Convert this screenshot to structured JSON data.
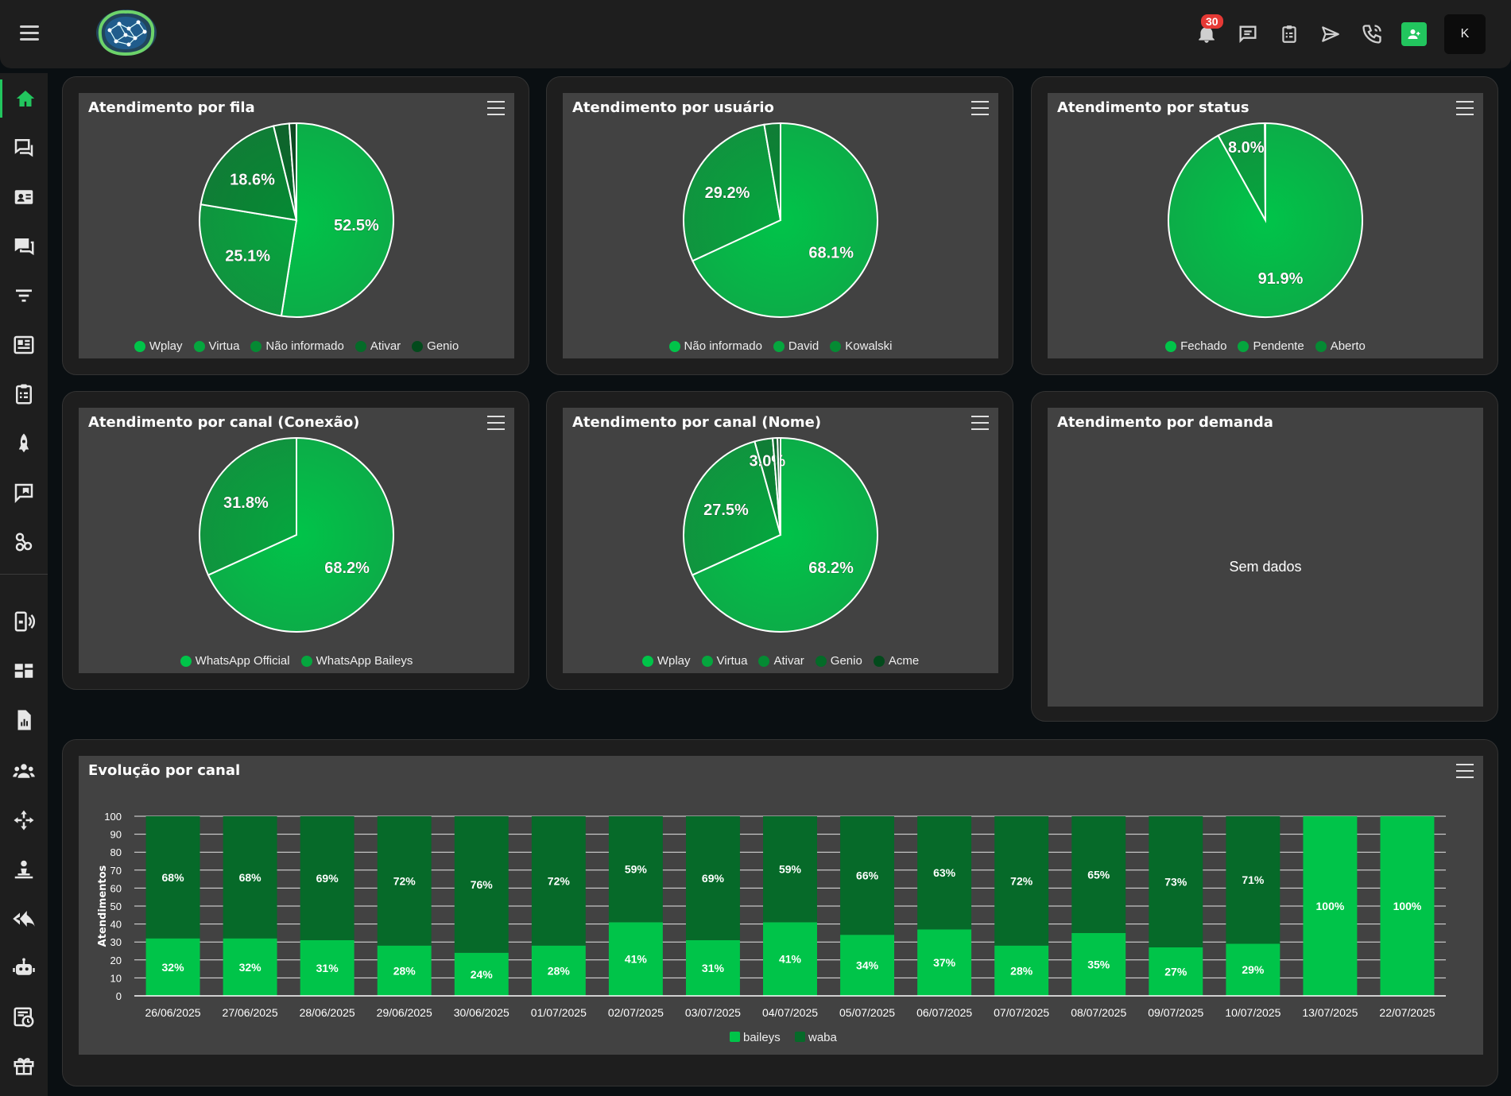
{
  "header": {
    "notification_count": "30",
    "avatar_initial": "K",
    "icons": [
      "bell-icon",
      "chat-icon",
      "clipboard-icon",
      "send-icon",
      "phone-call-icon",
      "add-user-icon"
    ]
  },
  "sidebar": {
    "icons": [
      "home-icon",
      "tickets-icon",
      "contacts-icon",
      "chats-icon",
      "filter-icon",
      "reports-icon",
      "tasks-icon",
      "campaign-icon",
      "messages-icon",
      "integrations-icon",
      "connections-icon",
      "dashboard-icon",
      "files-icon",
      "users-icon",
      "queues-icon",
      "announcements-icon",
      "quick-replies-icon",
      "bot-icon",
      "finance-icon",
      "gift-icon"
    ]
  },
  "colors": {
    "c1": "#00c449",
    "c2": "#05a63e",
    "c3": "#058a33",
    "c4": "#046b28",
    "c5": "#034a1c",
    "baileys": "#00c449",
    "waba": "#066a29"
  },
  "charts": {
    "fila": {
      "title": "Atendimento por fila",
      "slices": [
        {
          "name": "Wplay",
          "value": 52.5,
          "label": "52.5%"
        },
        {
          "name": "Virtua",
          "value": 25.1,
          "label": "25.1%"
        },
        {
          "name": "Não informado",
          "value": 18.6,
          "label": "18.6%"
        },
        {
          "name": "Ativar",
          "value": 2.6,
          "label": ""
        },
        {
          "name": "Genio",
          "value": 1.2,
          "label": ""
        }
      ]
    },
    "usuario": {
      "title": "Atendimento por usuário",
      "slices": [
        {
          "name": "Não informado",
          "value": 68.1,
          "label": "68.1%"
        },
        {
          "name": "David",
          "value": 29.2,
          "label": "29.2%"
        },
        {
          "name": "Kowalski",
          "value": 2.7,
          "label": ""
        }
      ]
    },
    "status": {
      "title": "Atendimento por status",
      "slices": [
        {
          "name": "Fechado",
          "value": 91.9,
          "label": "91.9%"
        },
        {
          "name": "Pendente",
          "value": 8.0,
          "label": "8.0%"
        },
        {
          "name": "Aberto",
          "value": 0.1,
          "label": ""
        }
      ]
    },
    "conexao": {
      "title": "Atendimento por canal (Conexão)",
      "slices": [
        {
          "name": "WhatsApp Official",
          "value": 68.2,
          "label": "68.2%"
        },
        {
          "name": "WhatsApp Baileys",
          "value": 31.8,
          "label": "31.8%"
        }
      ]
    },
    "nome": {
      "title": "Atendimento por canal (Nome)",
      "slices": [
        {
          "name": "Wplay",
          "value": 68.2,
          "label": "68.2%"
        },
        {
          "name": "Virtua",
          "value": 27.5,
          "label": "27.5%"
        },
        {
          "name": "Ativar",
          "value": 3.0,
          "label": "3.0%"
        },
        {
          "name": "Genio",
          "value": 0.8,
          "label": ""
        },
        {
          "name": "Acme",
          "value": 0.5,
          "label": ""
        }
      ]
    },
    "demanda": {
      "title": "Atendimento por demanda",
      "empty_text": "Sem dados"
    }
  },
  "chart_data": {
    "type": "bar",
    "stacked": true,
    "title": "Evolução por canal",
    "ylabel": "Atendimentos",
    "ylim": [
      0,
      100
    ],
    "yticks": [
      0,
      10,
      20,
      30,
      40,
      50,
      60,
      70,
      80,
      90,
      100
    ],
    "categories": [
      "26/06/2025",
      "27/06/2025",
      "28/06/2025",
      "29/06/2025",
      "30/06/2025",
      "01/07/2025",
      "02/07/2025",
      "03/07/2025",
      "04/07/2025",
      "05/07/2025",
      "06/07/2025",
      "07/07/2025",
      "08/07/2025",
      "09/07/2025",
      "10/07/2025",
      "13/07/2025",
      "22/07/2025"
    ],
    "series": [
      {
        "name": "baileys",
        "values": [
          32,
          32,
          31,
          28,
          24,
          28,
          41,
          31,
          41,
          34,
          37,
          28,
          35,
          27,
          29,
          100,
          100
        ]
      },
      {
        "name": "waba",
        "values": [
          68,
          68,
          69,
          72,
          76,
          72,
          59,
          69,
          59,
          66,
          63,
          72,
          65,
          73,
          71,
          0,
          0
        ]
      }
    ],
    "legend": "bottom-center",
    "grid": true
  }
}
